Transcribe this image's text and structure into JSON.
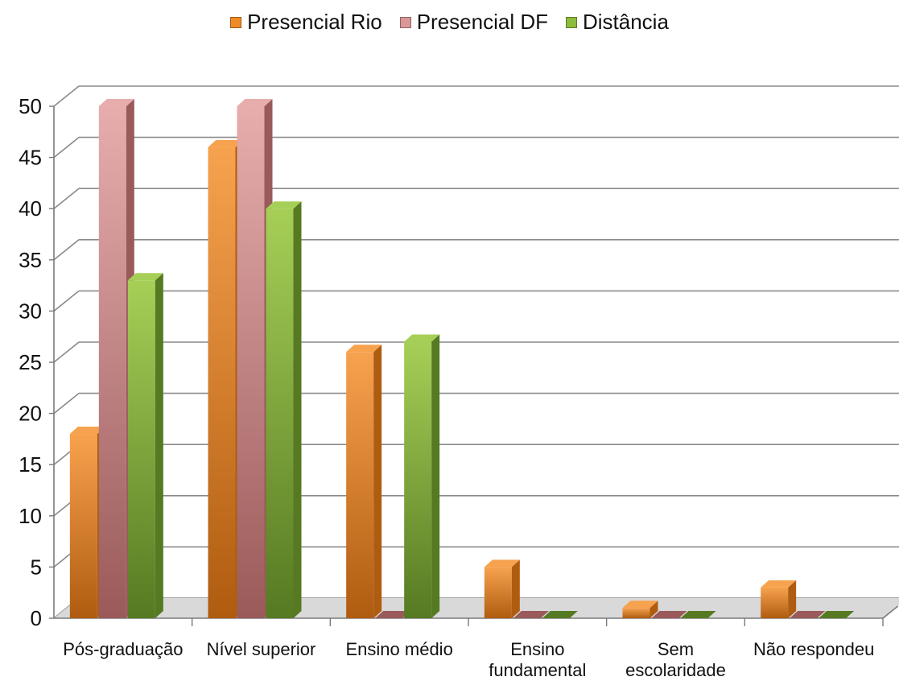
{
  "chart_data": {
    "type": "bar",
    "style": "3d-clustered-column",
    "categories": [
      [
        "Pós-graduação"
      ],
      [
        "Nível superior"
      ],
      [
        "Ensino médio"
      ],
      [
        "Ensino",
        "fundamental"
      ],
      [
        "Sem",
        "escolaridade"
      ],
      [
        "Não respondeu"
      ]
    ],
    "series": [
      {
        "name": "Presencial Rio",
        "values": [
          18,
          46,
          26,
          5,
          1,
          3
        ],
        "color": "#F08A24",
        "side_color": "#B05C10",
        "top_color": "#F7A24E"
      },
      {
        "name": "Presencial DF",
        "values": [
          50,
          50,
          0,
          0,
          0,
          0
        ],
        "color": "#DB9797",
        "side_color": "#9A5A5A",
        "top_color": "#E7ADAD"
      },
      {
        "name": "Distância",
        "values": [
          33,
          40,
          27,
          0,
          0,
          0
        ],
        "color": "#8DBB3C",
        "side_color": "#557A22",
        "top_color": "#A6CF57"
      }
    ],
    "yticks": [
      0,
      5,
      10,
      15,
      20,
      25,
      30,
      35,
      40,
      45,
      50
    ],
    "ylim": [
      0,
      50
    ],
    "grid": true,
    "legend": "top-center",
    "title": "",
    "xlabel": "",
    "ylabel": ""
  }
}
